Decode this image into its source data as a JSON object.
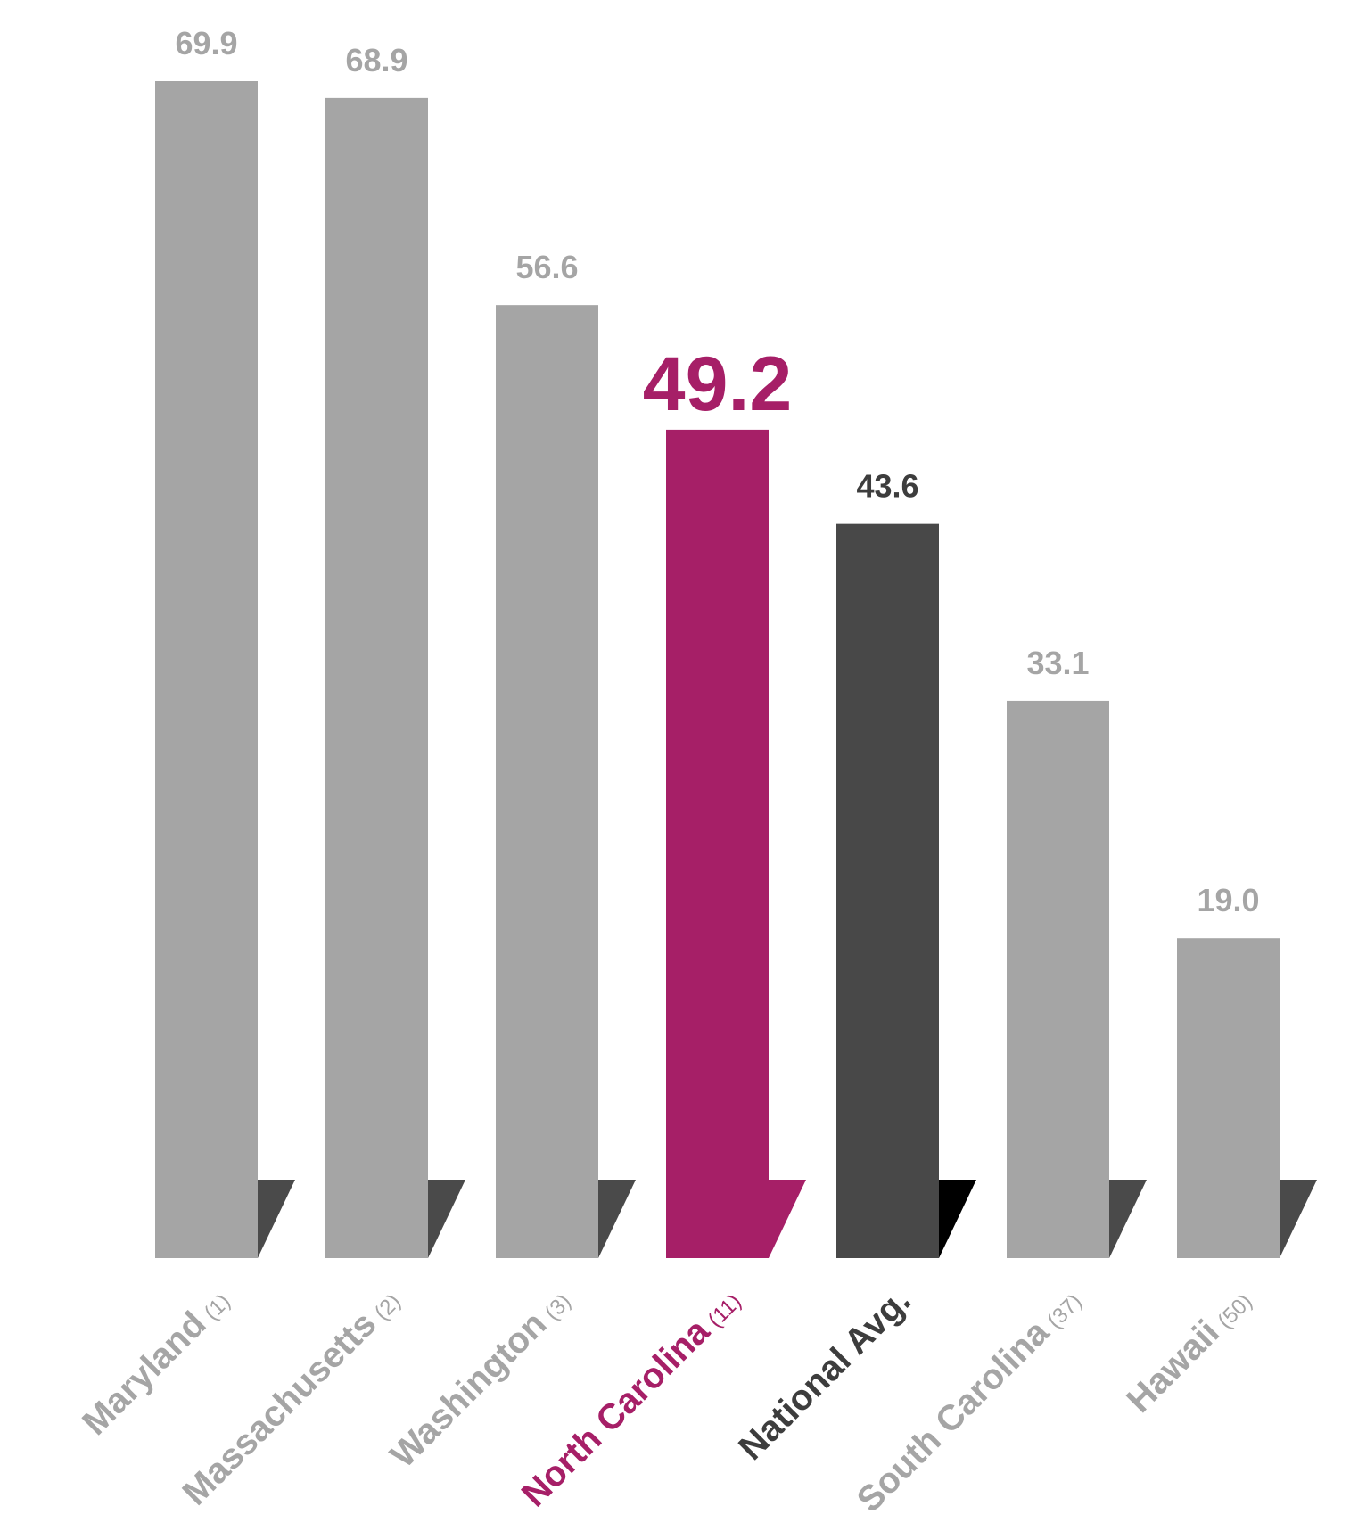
{
  "chart_data": {
    "type": "bar",
    "title": "",
    "xlabel": "",
    "ylabel": "",
    "ylim": [
      0,
      69.9
    ],
    "grid": false,
    "legend": "none",
    "categories": [
      {
        "name": "Maryland",
        "rank": "(1)",
        "value": 69.9,
        "value_label": "69.9",
        "style": "default"
      },
      {
        "name": "Massachusetts",
        "rank": "(2)",
        "value": 68.9,
        "value_label": "68.9",
        "style": "default"
      },
      {
        "name": "Washington",
        "rank": "(3)",
        "value": 56.6,
        "value_label": "56.6",
        "style": "default"
      },
      {
        "name": "North Carolina",
        "rank": "(11)",
        "value": 49.2,
        "value_label": "49.2",
        "style": "highlight"
      },
      {
        "name": "National Avg.",
        "rank": "",
        "value": 43.6,
        "value_label": "43.6",
        "style": "average"
      },
      {
        "name": "South Carolina",
        "rank": "(37)",
        "value": 33.1,
        "value_label": "33.1",
        "style": "default"
      },
      {
        "name": "Hawaii",
        "rank": "(50)",
        "value": 19.0,
        "value_label": "19.0",
        "style": "default"
      }
    ]
  },
  "colors": {
    "default_bar": "#a5a5a5",
    "default_fold": "#4a4a4a",
    "default_text": "#a5a5a5",
    "highlight_bar": "#a61f67",
    "highlight_fold": "#a61f67",
    "highlight_text": "#a61f67",
    "average_bar": "#484848",
    "average_fold": "#000000",
    "average_text": "#3d3d3d",
    "background": "#ffffff"
  }
}
